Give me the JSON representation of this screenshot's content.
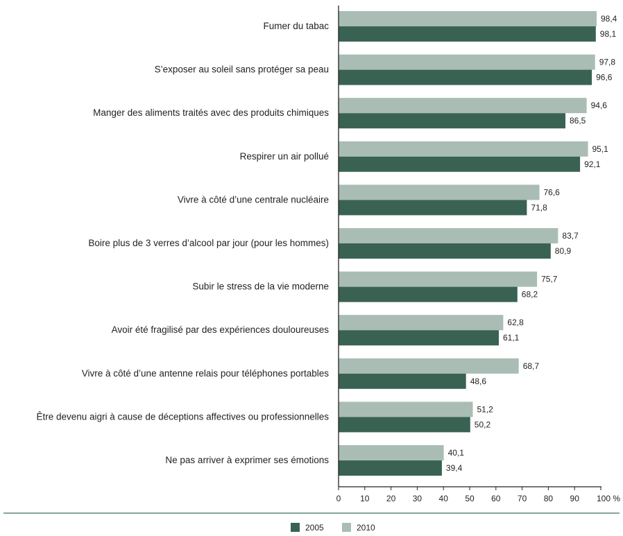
{
  "chart_data": {
    "type": "bar",
    "orientation": "horizontal",
    "categories": [
      "Fumer du tabac",
      "S’exposer au soleil sans protéger sa peau",
      "Manger des aliments traités avec des produits chimiques",
      "Respirer un air pollué",
      "Vivre à côté d’une centrale nucléaire",
      "Boire plus de 3 verres d’alcool par jour (pour les hommes)",
      "Subir le stress de la vie moderne",
      "Avoir été fragilisé par des expériences douloureuses",
      "Vivre à côté d’une antenne relais pour téléphones portables",
      "Être devenu aigri à cause de déceptions affectives ou professionnelles",
      "Ne pas arriver à exprimer ses émotions"
    ],
    "series": [
      {
        "name": "2010",
        "color": "#a9bdb4",
        "values": [
          98.4,
          97.8,
          94.6,
          95.1,
          76.6,
          83.7,
          75.7,
          62.8,
          68.7,
          51.2,
          40.1
        ],
        "labels": [
          "98,4",
          "97,8",
          "94,6",
          "95,1",
          "76,6",
          "83,7",
          "75,7",
          "62,8",
          "68,7",
          "51,2",
          "40,1"
        ]
      },
      {
        "name": "2005",
        "color": "#3a6253",
        "values": [
          98.1,
          96.6,
          86.5,
          92.1,
          71.8,
          80.9,
          68.2,
          61.1,
          48.6,
          50.2,
          39.4
        ],
        "labels": [
          "98,1",
          "96,6",
          "86,5",
          "92,1",
          "71,8",
          "80,9",
          "68,2",
          "61,1",
          "48,6",
          "50,2",
          "39,4"
        ]
      }
    ],
    "xlim": [
      0,
      100
    ],
    "xticks": [
      "0",
      "10",
      "20",
      "30",
      "40",
      "50",
      "60",
      "70",
      "80",
      "90",
      "100 %"
    ],
    "grid": false,
    "legend": {
      "position": "bottom",
      "entries": [
        {
          "name": "2005",
          "color": "#3a6253"
        },
        {
          "name": "2010",
          "color": "#a9bdb4"
        }
      ]
    },
    "separator_color": "#5e8a78"
  }
}
